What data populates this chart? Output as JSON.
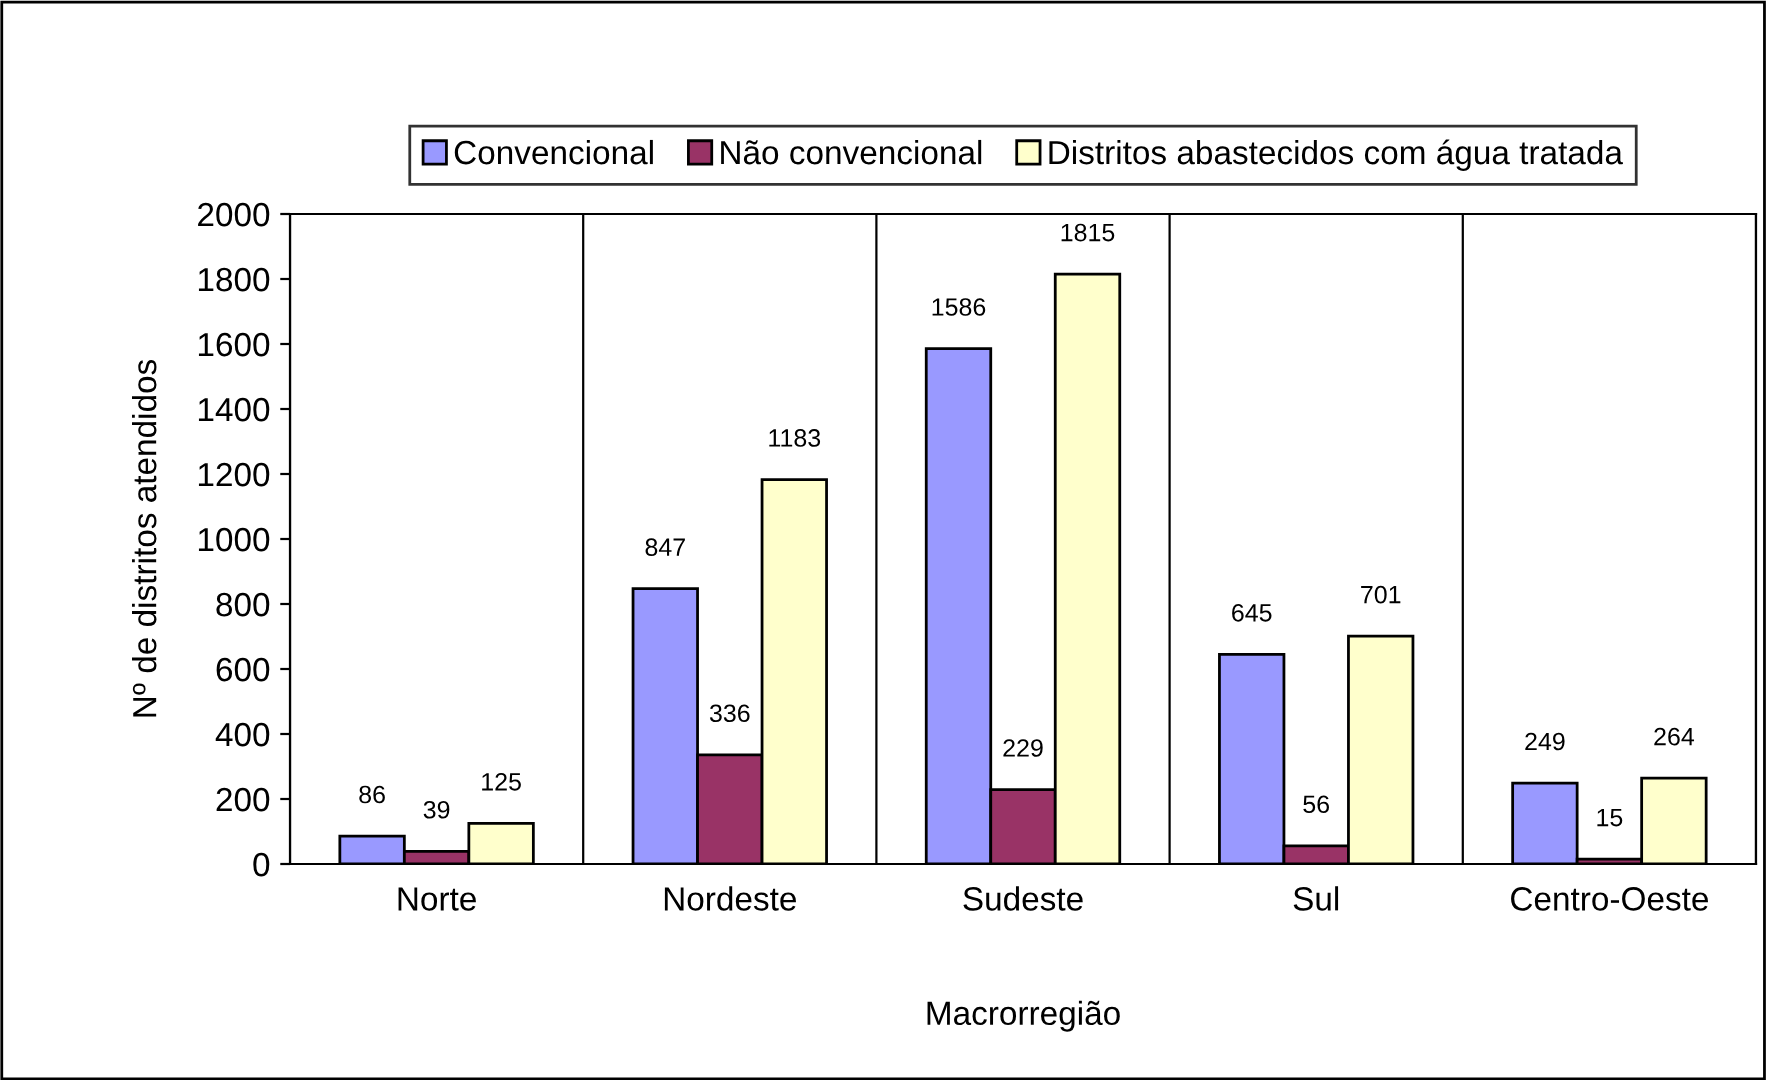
{
  "chart_data": {
    "type": "bar",
    "xlabel": "Macrorregião",
    "ylabel": "Nº de distritos atendidos",
    "categories": [
      "Norte",
      "Nordeste",
      "Sudeste",
      "Sul",
      "Centro-Oeste"
    ],
    "series": [
      {
        "name": "Convencional",
        "color": "#9999ff",
        "values": [
          86,
          847,
          1586,
          645,
          249
        ]
      },
      {
        "name": "Não convencional",
        "color": "#993366",
        "values": [
          39,
          336,
          229,
          56,
          15
        ]
      },
      {
        "name": "Distritos abastecidos com água tratada",
        "color": "#ffffcc",
        "values": [
          125,
          1183,
          1815,
          701,
          264
        ]
      }
    ],
    "ylim": [
      0,
      2000
    ],
    "yticks": [
      0,
      200,
      400,
      600,
      800,
      1000,
      1200,
      1400,
      1600,
      1800,
      2000
    ],
    "grid": "x",
    "legend": "top",
    "data_labels": true
  }
}
